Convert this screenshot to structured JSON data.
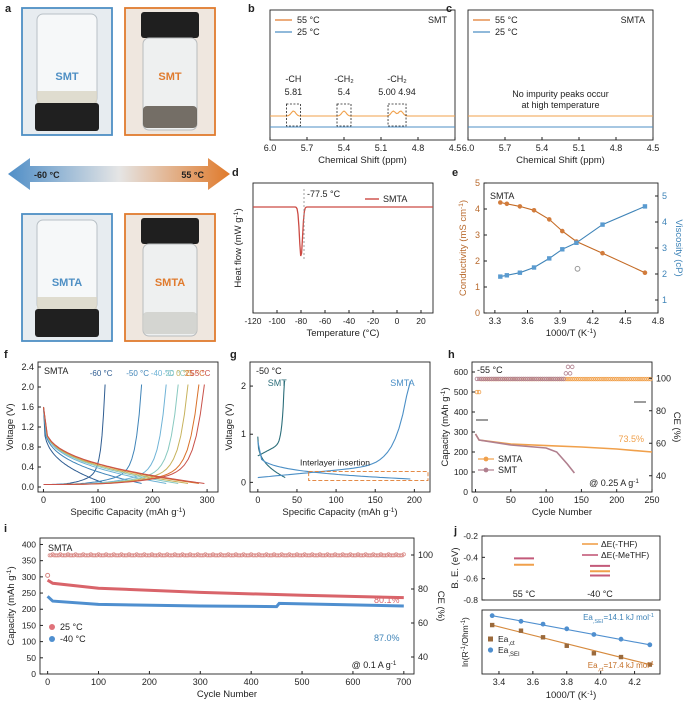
{
  "colors": {
    "hot": "#e07b2e",
    "cold": "#4e8fc4",
    "red": "#cc4a43",
    "orange": "#f0a04b",
    "mauve": "#b07f8e",
    "teal": "#2c6e7a",
    "blue": "#4b8fc6",
    "dark": "#222222",
    "pinkline": "#c35a7a"
  },
  "panel_a": {
    "letter": "a",
    "vials": [
      {
        "label": "SMT",
        "temp": "cold"
      },
      {
        "label": "SMT",
        "temp": "hot"
      },
      {
        "label": "SMTA",
        "temp": "cold"
      },
      {
        "label": "SMTA",
        "temp": "hot"
      }
    ],
    "arrow_left": "-60 °C",
    "arrow_right": "55 °C"
  },
  "chart_data": [
    {
      "id": "b",
      "type": "line",
      "title": "SMT",
      "xlabel": "Chemical Shift (ppm)",
      "ylabel": "",
      "xlim": [
        6.0,
        4.5
      ],
      "ticks": [
        "6.0",
        "5.7",
        "5.4",
        "5.1",
        "4.8",
        "4.5"
      ],
      "legend": [
        "55 °C",
        "25 °C"
      ],
      "series": [
        {
          "name": "55 °C",
          "peaks": [
            5.81,
            5.4,
            5.0,
            4.94
          ]
        },
        {
          "name": "25 °C",
          "peaks": []
        }
      ],
      "annotations": [
        {
          "label": "-CH",
          "value": "5.81"
        },
        {
          "label": "-CH2",
          "value": "5.4"
        },
        {
          "label": "-CH2",
          "value": "5.00 4.94"
        }
      ]
    },
    {
      "id": "c",
      "type": "line",
      "title": "SMTA",
      "xlabel": "Chemical Shift (ppm)",
      "ylabel": "",
      "xlim": [
        6.0,
        4.5
      ],
      "ticks": [
        "6.0",
        "5.7",
        "5.4",
        "5.1",
        "4.8",
        "4.5"
      ],
      "legend": [
        "55 °C",
        "25 °C"
      ],
      "annotation": [
        "No impurity peaks occur",
        "at high temperature"
      ]
    },
    {
      "id": "d",
      "type": "line",
      "title": "",
      "xlabel": "Temperature (°C)",
      "ylabel": "Heat flow (mW g-1)",
      "xlim": [
        -120,
        30
      ],
      "ticks": [
        "-120",
        "-100",
        "-80",
        "-60",
        "-40",
        "-20",
        "0",
        "20"
      ],
      "legend": [
        "SMTA"
      ],
      "annotation": "-77.5 °C",
      "peak_at": -77.5
    },
    {
      "id": "e",
      "type": "line",
      "title": "SMTA",
      "xlabel": "1000/T (K-1)",
      "ylabel": "Conductivity (mS cm-1)",
      "ylabel_right": "Viscosity (cP)",
      "xlim": [
        3.2,
        4.8
      ],
      "ylim": [
        0,
        5
      ],
      "ylim_right": [
        0.5,
        5.5
      ],
      "xticks": [
        "3.3",
        "3.6",
        "3.9",
        "4.2",
        "4.5",
        "4.8"
      ],
      "yticks": [
        "0",
        "1",
        "2",
        "3",
        "4",
        "5"
      ],
      "yticks_right": [
        "1",
        "2",
        "3",
        "4",
        "5"
      ],
      "series": [
        {
          "name": "Conductivity",
          "x": [
            3.35,
            3.41,
            3.53,
            3.66,
            3.8,
            3.92,
            4.05,
            4.29,
            4.68
          ],
          "y": [
            4.25,
            4.2,
            4.1,
            3.95,
            3.6,
            3.15,
            2.75,
            2.3,
            1.55
          ]
        },
        {
          "name": "Viscosity",
          "x": [
            3.35,
            3.41,
            3.53,
            3.66,
            3.8,
            3.92,
            4.05,
            4.29,
            4.68
          ],
          "y": [
            1.9,
            1.95,
            2.05,
            2.25,
            2.6,
            2.95,
            3.2,
            3.9,
            4.6
          ]
        }
      ]
    },
    {
      "id": "f",
      "type": "line",
      "title": "SMTA",
      "xlabel": "Specific Capacity (mAh g-1)",
      "ylabel": "Voltage (V)",
      "xlim": [
        -10,
        320
      ],
      "ylim": [
        -0.1,
        2.5
      ],
      "xticks": [
        "0",
        "100",
        "200",
        "300"
      ],
      "yticks": [
        "0.0",
        "0.4",
        "0.8",
        "1.2",
        "1.6",
        "2.0",
        "2.4"
      ],
      "series": [
        {
          "name": "-60 °C",
          "end_capacity": 113
        },
        {
          "name": "-50 °C",
          "end_capacity": 180
        },
        {
          "name": "-40 °C",
          "end_capacity": 225
        },
        {
          "name": "-20 °C",
          "end_capacity": 247
        },
        {
          "name": "0 °C",
          "end_capacity": 265
        },
        {
          "name": "25 °C",
          "end_capacity": 285
        },
        {
          "name": "55 °C",
          "end_capacity": 295
        }
      ]
    },
    {
      "id": "g",
      "type": "line",
      "title": "-50 °C",
      "xlabel": "Specific Capacity (mAh g-1)",
      "ylabel": "Voltage (V)",
      "xlim": [
        -10,
        220
      ],
      "ylim": [
        -0.2,
        2.5
      ],
      "xticks": [
        "0",
        "50",
        "100",
        "150",
        "200"
      ],
      "yticks": [
        "0",
        "1",
        "2"
      ],
      "series": [
        {
          "name": "SMT",
          "end_capacity": 35
        },
        {
          "name": "SMTA",
          "end_capacity": 195
        }
      ],
      "annotation": "Interlayer insertion"
    },
    {
      "id": "h",
      "type": "line",
      "title": "-55 °C",
      "xlabel": "Cycle Number",
      "ylabel": "Capacity (mAh g-1)",
      "ylabel_right": "CE (%)",
      "xlim": [
        -5,
        250
      ],
      "ylim": [
        0,
        650
      ],
      "ylim_right": [
        30,
        110
      ],
      "xticks": [
        "0",
        "50",
        "100",
        "150",
        "200",
        "250"
      ],
      "yticks": [
        "0",
        "100",
        "200",
        "300",
        "400",
        "500",
        "600"
      ],
      "yticks_right": [
        "40",
        "60",
        "80",
        "100"
      ],
      "legend": [
        "SMTA",
        "SMT"
      ],
      "annotation": "73.5%",
      "rate": "@ 0.25 A g-1",
      "series": [
        {
          "name": "SMTA",
          "x": [
            0,
            5,
            50,
            100,
            150,
            200,
            250
          ],
          "y": [
            290,
            260,
            240,
            232,
            225,
            215,
            200
          ]
        },
        {
          "name": "SMT",
          "x": [
            0,
            5,
            50,
            100,
            115,
            130,
            140
          ],
          "y": [
            290,
            260,
            235,
            220,
            200,
            140,
            95
          ]
        }
      ]
    },
    {
      "id": "i",
      "type": "line",
      "title": "SMTA",
      "xlabel": "Cycle Number",
      "ylabel": "Capacity (mAh g-1)",
      "ylabel_right": "CE (%)",
      "xlim": [
        -15,
        720
      ],
      "ylim": [
        0,
        420
      ],
      "ylim_right": [
        30,
        110
      ],
      "xticks": [
        "0",
        "100",
        "200",
        "300",
        "400",
        "500",
        "600",
        "700"
      ],
      "yticks": [
        "0",
        "50",
        "100",
        "150",
        "200",
        "250",
        "300",
        "350",
        "400"
      ],
      "yticks_right": [
        "40",
        "60",
        "80",
        "100"
      ],
      "legend": [
        "25 °C",
        "-40 °C"
      ],
      "annotations": [
        "80.1%",
        "87.0%"
      ],
      "rate": "@ 0.1 A g-1",
      "series": [
        {
          "name": "25 °C",
          "x": [
            0,
            10,
            100,
            300,
            500,
            700
          ],
          "y": [
            290,
            280,
            265,
            252,
            243,
            236
          ]
        },
        {
          "name": "-40 °C",
          "x": [
            0,
            10,
            100,
            300,
            450,
            455,
            700
          ],
          "y": [
            240,
            225,
            215,
            210,
            208,
            218,
            210
          ]
        }
      ]
    },
    {
      "id": "j1",
      "type": "bar",
      "title": "",
      "xlabel": "",
      "ylabel": "B. E. (eV)",
      "ylim": [
        -0.8,
        -0.2
      ],
      "yticks": [
        "-0.2",
        "-0.4",
        "-0.6",
        "-0.8"
      ],
      "categories": [
        "55 °C",
        "-40 °C"
      ],
      "legend": [
        "ΔE(-THF)",
        "ΔE(-MeTHF)"
      ],
      "series": [
        {
          "name": "ΔE(-THF)",
          "values": [
            -0.47,
            -0.53
          ]
        },
        {
          "name": "ΔE(-MeTHF)",
          "values": [
            -0.41,
            -0.48
          ]
        }
      ],
      "extra_cold": -0.57
    },
    {
      "id": "j2",
      "type": "scatter",
      "title": "",
      "xlabel": "1000/T (K-1)",
      "ylabel": "ln(R-1/Ohm-1)",
      "xlim": [
        3.3,
        4.35
      ],
      "xticks": [
        "3.4",
        "3.6",
        "3.8",
        "4.0",
        "4.2"
      ],
      "legend": [
        "Ea,ct",
        "Ea,SEI"
      ],
      "annotations": [
        "Ea,SEI=14.1 kJ mol-1",
        "Ea,ct=17.4 kJ mol-1"
      ],
      "series": [
        {
          "name": "Ea,ct",
          "x": [
            3.36,
            3.53,
            3.66,
            3.8,
            3.96,
            4.12,
            4.29
          ],
          "y": [
            -1.6,
            -1.9,
            -2.25,
            -2.7,
            -3.1,
            -3.3,
            -3.7
          ]
        },
        {
          "name": "Ea,SEI",
          "x": [
            3.36,
            3.53,
            3.66,
            3.8,
            3.96,
            4.12,
            4.29
          ],
          "y": [
            -1.1,
            -1.4,
            -1.55,
            -1.8,
            -2.1,
            -2.35,
            -2.65
          ]
        }
      ]
    }
  ]
}
